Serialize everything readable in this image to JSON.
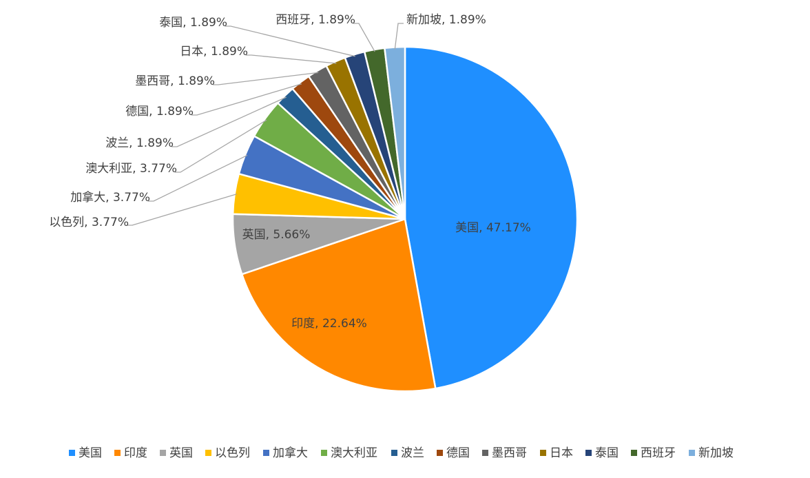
{
  "chart_data": {
    "type": "pie",
    "title": "",
    "slices": [
      {
        "label": "美国",
        "value": 47.17,
        "display": "美国, 47.17%",
        "color": "#1f8fff"
      },
      {
        "label": "印度",
        "value": 22.64,
        "display": "印度, 22.64%",
        "color": "#ff8800"
      },
      {
        "label": "英国",
        "value": 5.66,
        "display": "英国, 5.66%",
        "color": "#a5a5a5"
      },
      {
        "label": "以色列",
        "value": 3.77,
        "display": "以色列, 3.77%",
        "color": "#ffc000"
      },
      {
        "label": "加拿大",
        "value": 3.77,
        "display": "加拿大, 3.77%",
        "color": "#4472c4"
      },
      {
        "label": "澳大利亚",
        "value": 3.77,
        "display": "澳大利亚, 3.77%",
        "color": "#70ad47"
      },
      {
        "label": "波兰",
        "value": 1.89,
        "display": "波兰, 1.89%",
        "color": "#255e91"
      },
      {
        "label": "德国",
        "value": 1.89,
        "display": "德国, 1.89%",
        "color": "#9e480e"
      },
      {
        "label": "墨西哥",
        "value": 1.89,
        "display": "墨西哥, 1.89%",
        "color": "#636363"
      },
      {
        "label": "日本",
        "value": 1.89,
        "display": "日本, 1.89%",
        "color": "#997300"
      },
      {
        "label": "泰国",
        "value": 1.89,
        "display": "泰国, 1.89%",
        "color": "#264478"
      },
      {
        "label": "西班牙",
        "value": 1.89,
        "display": "西班牙, 1.89%",
        "color": "#43682b"
      },
      {
        "label": "新加坡",
        "value": 1.89,
        "display": "新加坡, 1.89%",
        "color": "#7cafdd"
      }
    ],
    "legend_position": "bottom"
  }
}
